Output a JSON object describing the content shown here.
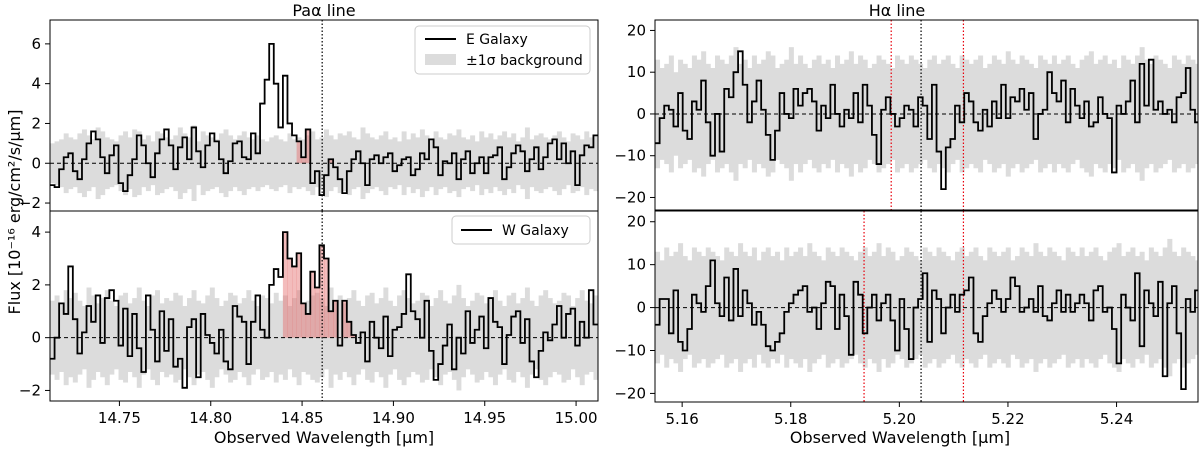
{
  "chart_data": [
    {
      "id": "paa_e",
      "type": "step",
      "title": "Paα  line",
      "legend": [
        {
          "label": "E Galaxy",
          "kind": "line"
        },
        {
          "label": "±1σ background",
          "kind": "band"
        }
      ],
      "legend_position": "top-right",
      "xlim": [
        14.712,
        15.012
      ],
      "ylim": [
        -2.4,
        7.2
      ],
      "yticks": [
        -2,
        0,
        2,
        4,
        6
      ],
      "xticks": [],
      "xtick_labels": [],
      "vlines": [
        {
          "x": 14.861,
          "color": "#000000",
          "style": "dotted"
        }
      ],
      "hline": 0,
      "fill_range": [
        14.845,
        14.877
      ],
      "x0": 14.712,
      "dx": 0.0025,
      "values": [
        -1.1,
        -1.2,
        -0.3,
        0.3,
        0.5,
        -0.4,
        -0.8,
        0.2,
        1.0,
        1.6,
        1.2,
        0.3,
        -0.5,
        0.4,
        0.9,
        -1.0,
        -1.4,
        -0.6,
        0.2,
        1.4,
        0.9,
        0.0,
        -0.7,
        0.5,
        1.2,
        1.7,
        0.9,
        -0.3,
        0.8,
        1.3,
        0.2,
        1.8,
        0.6,
        -0.2,
        0.9,
        1.5,
        1.1,
        0.2,
        -0.5,
        0.1,
        1.0,
        1.1,
        0.3,
        0.2,
        1.5,
        0.5,
        3.0,
        4.2,
        6.0,
        4.0,
        1.8,
        4.4,
        2.0,
        1.4,
        1.1,
        0.3,
        1.7,
        -1.0,
        -0.4,
        -1.6,
        -0.6,
        0.2,
        -0.2,
        -0.8,
        -1.5,
        -0.4,
        0.2,
        0.6,
        0.0,
        -1.1,
        0.2,
        0.4,
        0.0,
        0.3,
        0.5,
        -0.4,
        -0.1,
        0.2,
        0.3,
        -0.6,
        -0.3,
        0.5,
        0.2,
        1.2,
        0.8,
        -0.6,
        0.1,
        0.0,
        0.5,
        -0.8,
        0.2,
        0.6,
        -0.5,
        0.0,
        0.3,
        -0.5,
        0.3,
        0.4,
        0.8,
        -0.8,
        -0.2,
        0.5,
        0.9,
        0.6,
        -0.4,
        0.2,
        0.8,
        -0.3,
        0.3,
        1.0,
        1.2,
        0.2,
        1.0,
        0.0,
        0.6,
        -1.1,
        0.4,
        0.9,
        0.8,
        1.4
      ],
      "band": [
        1.0,
        1.1,
        1.2,
        1.5,
        1.3,
        1.2,
        1.5,
        1.7,
        1.4,
        1.2,
        1.8,
        1.6,
        1.3,
        1.2,
        1.1,
        1.4,
        1.6,
        1.3,
        1.7,
        1.6,
        1.2,
        1.4,
        1.1,
        1.6,
        1.5,
        1.3,
        1.2,
        1.4,
        1.8,
        1.5,
        1.3,
        1.9,
        1.1,
        1.6,
        1.4,
        1.3,
        1.2,
        1.5,
        1.7,
        1.4,
        1.2,
        1.4,
        1.6,
        1.3,
        1.2,
        1.4,
        1.2,
        1.1,
        1.3,
        1.4,
        1.2,
        1.1,
        1.5,
        1.2,
        1.3,
        1.2,
        1.4,
        1.6,
        1.2,
        1.3,
        1.7,
        1.4,
        1.2,
        1.5,
        1.4,
        1.6,
        1.3,
        1.2,
        1.8,
        1.5,
        1.3,
        1.2,
        1.4,
        1.6,
        1.2,
        1.3,
        1.1,
        1.6,
        1.2,
        1.5,
        1.3,
        1.7,
        1.4,
        1.2,
        1.6,
        1.3,
        1.2,
        1.5,
        1.4,
        1.7,
        1.3,
        1.2,
        1.4,
        1.1,
        1.6,
        1.3,
        1.5,
        1.2,
        1.4,
        1.6,
        1.3,
        1.5,
        1.1,
        1.3,
        1.8,
        1.2,
        1.4,
        1.5,
        1.3,
        1.2,
        1.4,
        1.6,
        1.3,
        1.1,
        1.5,
        1.4,
        1.2,
        1.6,
        1.3,
        1.4
      ]
    },
    {
      "id": "paa_w",
      "type": "step",
      "title": "",
      "legend": [
        {
          "label": "W Galaxy",
          "kind": "line"
        }
      ],
      "legend_position": "top-right",
      "xlim": [
        14.712,
        15.012
      ],
      "ylim": [
        -2.4,
        4.8
      ],
      "yticks": [
        -2,
        0,
        2,
        4
      ],
      "xticks": [
        14.75,
        14.8,
        14.85,
        14.9,
        14.95,
        15.0
      ],
      "xtick_labels": [
        "14.75",
        "14.80",
        "14.85",
        "14.90",
        "14.95",
        "15.00"
      ],
      "xlabel": "Observed Wavelength [μm]",
      "vlines": [
        {
          "x": 14.861,
          "color": "#000000",
          "style": "dotted"
        }
      ],
      "hline": 0,
      "fill_range": [
        14.838,
        14.88
      ],
      "x0": 14.712,
      "dx": 0.0025,
      "values": [
        -0.8,
        0.0,
        1.3,
        0.9,
        2.7,
        0.7,
        -0.6,
        0.2,
        1.2,
        0.6,
        1.6,
        -0.2,
        1.5,
        1.8,
        1.4,
        -0.3,
        1.1,
        -0.7,
        0.9,
        -0.4,
        -1.3,
        1.6,
        0.3,
        -0.9,
        1.0,
        -0.5,
        0.7,
        -1.1,
        -0.8,
        -1.9,
        0.4,
        0.7,
        -1.5,
        0.9,
        0.1,
        -0.2,
        -0.6,
        0.3,
        -0.9,
        -1.2,
        1.2,
        0.8,
        0.6,
        -1.0,
        0.6,
        1.6,
        0.3,
        0.0,
        2.0,
        2.6,
        2.3,
        4.0,
        3.0,
        2.7,
        3.2,
        1.3,
        0.9,
        2.5,
        1.9,
        3.5,
        3.0,
        1.0,
        1.4,
        -0.3,
        1.4,
        0.6,
        0.1,
        -0.2,
        0.2,
        -0.9,
        0.6,
        0.0,
        -0.4,
        0.8,
        -0.7,
        0.3,
        0.4,
        0.9,
        2.4,
        1.0,
        0.7,
        0.0,
        1.4,
        -0.5,
        -1.6,
        -1.0,
        -0.3,
        0.5,
        -1.2,
        0.0,
        -0.6,
        1.0,
        -0.2,
        0.3,
        0.8,
        -0.4,
        1.5,
        0.6,
        0.4,
        -1.0,
        0.1,
        0.8,
        1.0,
        -0.2,
        0.7,
        -0.9,
        -1.5,
        -0.5,
        0.2,
        -0.1,
        0.5,
        1.2,
        0.0,
        0.9,
        1.1,
        -0.3,
        0.6,
        0.0,
        1.8,
        0.5
      ],
      "band": [
        1.4,
        1.6,
        1.3,
        1.8,
        1.5,
        1.7,
        1.4,
        1.2,
        1.9,
        1.6,
        1.3,
        1.5,
        1.8,
        1.4,
        1.2,
        1.6,
        1.7,
        1.3,
        1.5,
        1.9,
        1.4,
        1.2,
        1.6,
        1.8,
        1.3,
        1.5,
        1.4,
        1.7,
        1.6,
        1.2,
        1.5,
        1.8,
        1.4,
        1.3,
        1.6,
        1.9,
        1.5,
        1.2,
        1.4,
        1.7,
        1.6,
        1.3,
        1.5,
        1.8,
        1.4,
        1.2,
        1.6,
        1.5,
        1.3,
        1.7,
        1.4,
        1.6,
        1.2,
        1.5,
        1.8,
        1.3,
        1.4,
        1.6,
        1.7,
        1.5,
        1.2,
        1.9,
        1.4,
        1.6,
        1.3,
        1.5,
        1.8,
        1.4,
        1.2,
        1.6,
        1.7,
        1.3,
        1.5,
        1.9,
        1.4,
        1.2,
        1.6,
        1.8,
        1.5,
        1.3,
        1.4,
        1.7,
        1.6,
        1.2,
        1.5,
        1.8,
        1.4,
        1.3,
        1.6,
        2.0,
        1.5,
        1.2,
        1.4,
        1.7,
        1.6,
        1.3,
        1.5,
        1.8,
        1.4,
        1.2,
        1.6,
        1.7,
        1.3,
        1.5,
        1.9,
        1.4,
        1.2,
        1.6,
        1.8,
        1.5,
        1.3,
        1.4,
        1.7,
        1.6,
        1.2,
        1.5,
        1.8,
        1.4,
        1.3,
        1.6
      ]
    },
    {
      "id": "ha_e",
      "type": "step",
      "title": "Hα line",
      "legend": [],
      "xlim": [
        5.155,
        5.255
      ],
      "ylim": [
        -23,
        22.5
      ],
      "yticks": [
        -20,
        -10,
        0,
        10,
        20
      ],
      "xticks": [],
      "xtick_labels": [],
      "vlines": [
        {
          "x": 5.1985,
          "color": "#e8000b",
          "style": "dotted"
        },
        {
          "x": 5.204,
          "color": "#000000",
          "style": "dotted"
        },
        {
          "x": 5.2118,
          "color": "#e8000b",
          "style": "dotted"
        }
      ],
      "hline": 0,
      "x0": 5.155,
      "dx": 0.00085,
      "values": [
        -7,
        -1,
        2,
        1,
        -3,
        5,
        -4,
        -6,
        3,
        1,
        8,
        -2,
        -10,
        0,
        -9,
        6,
        4,
        10,
        15,
        7,
        -2,
        3,
        8,
        1,
        -5,
        -11,
        -4,
        5,
        0,
        -1,
        6,
        2,
        5,
        6,
        3,
        -4,
        2,
        -1,
        7,
        0,
        -3,
        1,
        -1,
        5,
        -2,
        7,
        2,
        -5,
        -12,
        1,
        4,
        0,
        -3,
        -1,
        2,
        1,
        -3,
        4,
        2,
        -6,
        7,
        -9,
        -18,
        -8,
        -6,
        2,
        -2,
        5,
        3,
        -2,
        -4,
        1,
        -3,
        3,
        -1,
        7,
        -1,
        4,
        3,
        6,
        1,
        5,
        -6,
        0,
        1,
        10,
        5,
        3,
        8,
        -2,
        6,
        2,
        -1,
        3,
        -3,
        -2,
        4,
        0,
        -1,
        -14,
        2,
        0,
        3,
        8,
        -2,
        12,
        2,
        13,
        1,
        3,
        0,
        1,
        -2,
        4,
        5,
        11,
        1,
        -2
      ],
      "band": [
        13,
        11,
        12,
        14,
        10,
        13,
        12,
        11,
        14,
        13,
        15,
        12,
        11,
        14,
        13,
        12,
        14,
        16,
        12,
        13,
        11,
        14,
        12,
        13,
        15,
        14,
        11,
        12,
        13,
        16,
        12,
        14,
        12,
        11,
        13,
        14,
        12,
        13,
        11,
        14,
        12,
        13,
        15,
        12,
        14,
        13,
        11,
        12,
        14,
        13,
        12,
        11,
        14,
        13,
        12,
        14,
        13,
        12,
        11,
        13,
        14,
        12,
        13,
        14,
        12,
        11,
        14,
        13,
        12,
        13,
        14,
        11,
        12,
        14,
        13,
        12,
        15,
        13,
        12,
        14,
        13,
        12,
        11,
        14,
        13,
        12,
        14,
        12,
        13,
        14,
        12,
        11,
        13,
        14,
        15,
        12,
        13,
        14,
        12,
        13,
        11,
        14,
        13,
        12,
        14,
        16,
        13,
        12,
        14,
        13,
        12,
        11,
        14,
        13,
        12,
        14,
        13,
        12
      ]
    },
    {
      "id": "ha_w",
      "type": "step",
      "title": "",
      "legend": [],
      "xlim": [
        5.155,
        5.255
      ],
      "ylim": [
        -22,
        22.5
      ],
      "yticks": [
        -20,
        -10,
        0,
        10,
        20
      ],
      "xticks": [
        5.16,
        5.18,
        5.2,
        5.22,
        5.24
      ],
      "xtick_labels": [
        "5.16",
        "5.18",
        "5.20",
        "5.22",
        "5.24"
      ],
      "xlabel": "Observed Wavelength [μm]",
      "vlines": [
        {
          "x": 5.1935,
          "color": "#e8000b",
          "style": "dotted"
        },
        {
          "x": 5.204,
          "color": "#000000",
          "style": "dotted"
        },
        {
          "x": 5.2118,
          "color": "#e8000b",
          "style": "dotted"
        }
      ],
      "hline": 0,
      "x0": 5.155,
      "dx": 0.00085,
      "values": [
        -4,
        2,
        2,
        -6,
        4,
        -8,
        -10,
        -5,
        3,
        1,
        -1,
        5,
        11,
        1,
        -2,
        7,
        -3,
        9,
        -2,
        4,
        1,
        -4,
        -1,
        -4,
        -9,
        -10,
        -8,
        -6,
        -1,
        1,
        3,
        4,
        5,
        -1,
        0,
        -5,
        1,
        6,
        5,
        -5,
        3,
        -2,
        -11,
        6,
        3,
        -6,
        0,
        3,
        -3,
        1,
        3,
        -3,
        -10,
        2,
        -5,
        -12,
        0,
        2,
        8,
        -8,
        4,
        2,
        -6,
        0,
        3,
        -1,
        3,
        4,
        7,
        -6,
        -8,
        -2,
        1,
        4,
        2,
        -1,
        2,
        7,
        5,
        -1,
        0,
        2,
        -1,
        5,
        -2,
        -3,
        1,
        4,
        -1,
        3,
        -1,
        1,
        3,
        1,
        -3,
        4,
        5,
        -1,
        0,
        -5,
        -13,
        3,
        0,
        -3,
        8,
        -9,
        4,
        1,
        -2,
        6,
        -16,
        1,
        5,
        -6,
        -19,
        2,
        -1,
        4
      ],
      "band": [
        13,
        11,
        14,
        12,
        13,
        15,
        12,
        11,
        14,
        13,
        12,
        14,
        13,
        12,
        11,
        14,
        13,
        12,
        15,
        13,
        12,
        14,
        11,
        13,
        14,
        12,
        13,
        11,
        14,
        12,
        13,
        14,
        12,
        15,
        13,
        12,
        11,
        14,
        13,
        12,
        14,
        13,
        12,
        11,
        13,
        14,
        12,
        13,
        15,
        12,
        14,
        13,
        11,
        12,
        14,
        13,
        12,
        11,
        14,
        13,
        12,
        14,
        13,
        12,
        11,
        13,
        14,
        12,
        13,
        14,
        12,
        11,
        14,
        13,
        12,
        13,
        14,
        11,
        12,
        14,
        13,
        12,
        15,
        13,
        12,
        14,
        13,
        12,
        11,
        14,
        13,
        12,
        14,
        12,
        13,
        14,
        12,
        11,
        13,
        14,
        15,
        12,
        13,
        14,
        12,
        13,
        11,
        14,
        13,
        12,
        14,
        16,
        13,
        12,
        14,
        13,
        12,
        11
      ]
    }
  ],
  "shared_ylabel": "Flux [10⁻¹⁶ erg/cm²/s/μm]",
  "colors": {
    "line": "#000000",
    "band": "#dcdcdc",
    "signal_fill": "#e46a6a",
    "red_marker": "#e8000b"
  }
}
